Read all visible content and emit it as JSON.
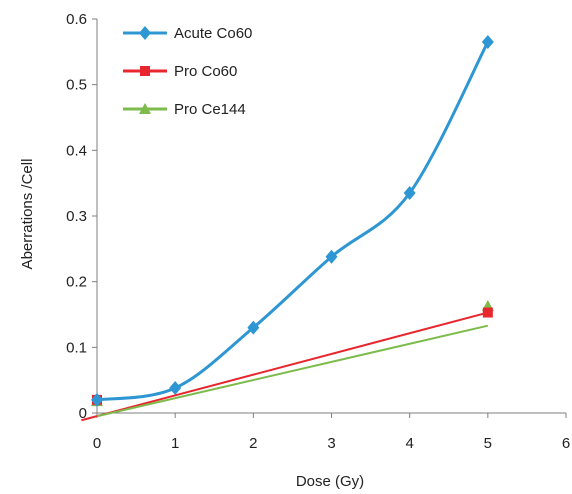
{
  "chart_data": {
    "type": "line",
    "title": "",
    "xlabel": "Dose (Gy)",
    "ylabel": "Aberrations /Cell",
    "xlim": [
      0,
      6
    ],
    "ylim": [
      0,
      0.6
    ],
    "x_ticks": [
      "0",
      "1",
      "2",
      "3",
      "4",
      "5",
      "6"
    ],
    "y_ticks": [
      "0",
      "0.1",
      "0.2",
      "0.3",
      "0.4",
      "0.5",
      "0.6"
    ],
    "grid": false,
    "legend": "top-left",
    "series": [
      {
        "name": "Acute Co60",
        "color": "#2e97d3",
        "marker": "diamond",
        "line": "smooth",
        "points": [
          [
            0,
            0.02
          ],
          [
            1,
            0.038
          ],
          [
            2,
            0.13
          ],
          [
            3,
            0.238
          ],
          [
            4,
            0.335
          ],
          [
            5,
            0.565
          ]
        ]
      },
      {
        "name": "Pro Co60",
        "color": "#e8262d",
        "marker": "square",
        "line": "none",
        "points": [
          [
            0,
            0.02
          ],
          [
            5,
            0.153
          ]
        ]
      },
      {
        "name": "Pro Ce144",
        "color": "#7dbb4c",
        "marker": "triangle",
        "line": "none",
        "points": [
          [
            0,
            0.018
          ],
          [
            5,
            0.163
          ]
        ]
      }
    ],
    "trendlines": [
      {
        "series": "Pro Co60",
        "color": "#e8262d",
        "from": [
          -0.2,
          -0.011
        ],
        "to": [
          5,
          0.153
        ]
      },
      {
        "series": "Pro Ce144",
        "color": "#7dbb4c",
        "from": [
          0,
          -0.005
        ],
        "to": [
          5,
          0.133
        ]
      }
    ]
  }
}
